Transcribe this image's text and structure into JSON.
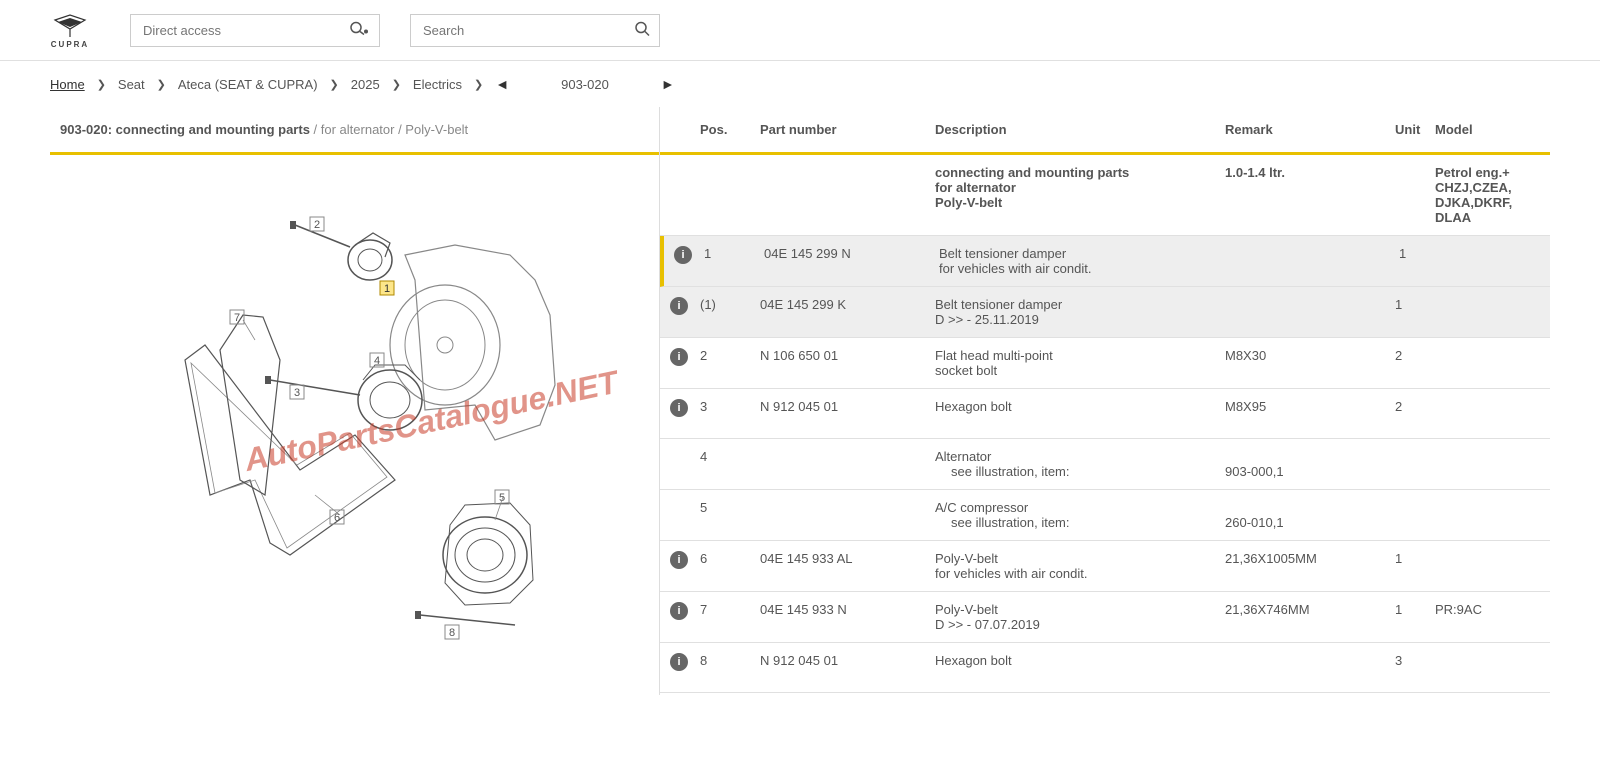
{
  "logo_text": "CUPRA",
  "direct_access": {
    "placeholder": "Direct access"
  },
  "search": {
    "placeholder": "Search"
  },
  "breadcrumb": {
    "home": "Home",
    "items": [
      "Seat",
      "Ateca (SEAT & CUPRA)",
      "2025",
      "Electrics"
    ],
    "code": "903-020"
  },
  "panel_title": "903-020: connecting and mounting parts",
  "panel_title_sub": " / for alternator / Poly-V-belt",
  "watermark": "AutoPartsCatalogue.NET",
  "table": {
    "headers": {
      "pos": "Pos.",
      "part": "Part number",
      "desc": "Description",
      "remark": "Remark",
      "unit": "Unit",
      "model": "Model"
    },
    "rows": [
      {
        "info": false,
        "pos": "",
        "part": "",
        "desc": "connecting and mounting parts\nfor alternator\nPoly-V-belt",
        "desc_bold": true,
        "remark": "1.0-1.4 ltr.",
        "unit": "",
        "model": "Petrol eng.+\nCHZJ,CZEA,\nDJKA,DKRF,\nDLAA",
        "model_bold": true
      },
      {
        "info": true,
        "pos": "1",
        "part": "04E 145 299 N",
        "desc": "Belt tensioner damper\nfor vehicles with air condit.",
        "remark": "",
        "unit": "1",
        "model": "",
        "selected": true
      },
      {
        "info": true,
        "pos": "(1)",
        "part": "04E 145 299 K",
        "desc": "Belt tensioner damper\nD            >> - 25.11.2019",
        "remark": "",
        "unit": "1",
        "model": "",
        "shaded": true
      },
      {
        "info": true,
        "pos": "2",
        "part": "N  106 650 01",
        "desc": "Flat head multi-point\nsocket bolt",
        "remark": "M8X30",
        "unit": "2",
        "model": ""
      },
      {
        "info": true,
        "pos": "3",
        "part": "N   912 045 01",
        "desc": "Hexagon bolt",
        "remark": "M8X95",
        "unit": "2",
        "model": ""
      },
      {
        "info": false,
        "pos": "4",
        "part": "",
        "desc": "Alternator",
        "desc_sub": "see illustration, item:",
        "remark": "903-000,1",
        "remark_offset": true,
        "unit": "",
        "model": ""
      },
      {
        "info": false,
        "pos": "5",
        "part": "",
        "desc": "A/C compressor",
        "desc_sub": "see illustration, item:",
        "remark": "260-010,1",
        "remark_offset": true,
        "unit": "",
        "model": ""
      },
      {
        "info": true,
        "pos": "6",
        "part": "04E 145 933 AL",
        "desc": "Poly-V-belt\nfor vehicles with air condit.",
        "remark": "21,36X1005MM",
        "unit": "1",
        "model": ""
      },
      {
        "info": true,
        "pos": "7",
        "part": "04E 145 933 N",
        "desc": "Poly-V-belt\nD            >> - 07.07.2019",
        "remark": "21,36X746MM",
        "unit": "1",
        "model": "PR:9AC"
      },
      {
        "info": true,
        "pos": "8",
        "part": "N   912 045 01",
        "desc": "Hexagon bolt",
        "remark": "",
        "unit": "3",
        "model": ""
      }
    ]
  },
  "diagram": {
    "callouts": [
      "1",
      "2",
      "3",
      "4",
      "5",
      "6",
      "7",
      "8"
    ]
  }
}
